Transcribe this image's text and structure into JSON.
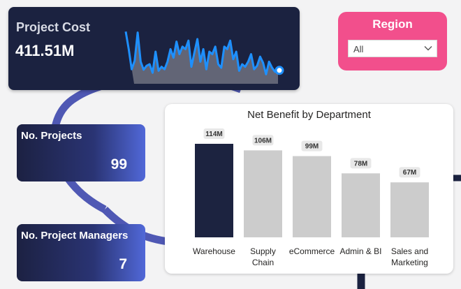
{
  "project_cost": {
    "label": "Project Cost",
    "value": "411.51M",
    "sparkline": [
      0.9,
      0.55,
      0.15,
      0.32,
      0.88,
      0.3,
      0.14,
      0.22,
      0.25,
      0.08,
      0.5,
      0.12,
      0.2,
      0.15,
      0.3,
      0.55,
      0.38,
      0.7,
      0.45,
      0.6,
      0.55,
      0.72,
      0.2,
      0.48,
      0.75,
      0.3,
      0.55,
      0.15,
      0.5,
      0.45,
      0.6,
      0.25,
      0.18,
      0.6,
      0.55,
      0.72,
      0.35,
      0.5,
      0.12,
      0.25,
      0.2,
      0.3,
      0.45,
      0.15,
      0.22,
      0.4,
      0.28,
      0.05,
      0.3,
      0.18,
      0.1,
      0.1
    ]
  },
  "region": {
    "label": "Region",
    "selected": "All"
  },
  "kpis": {
    "projects": {
      "label": "No. Projects",
      "value": "99"
    },
    "managers": {
      "label": "No. Project Managers",
      "value": "7"
    }
  },
  "colors": {
    "navy": "#1b2240",
    "pink": "#f24f8c",
    "ring": "#4f58b4",
    "bar_highlight": "#1c2340",
    "bar_default": "#cccccc",
    "sparkline": "#1e90ff"
  },
  "chart_data": {
    "type": "bar",
    "title": "Net Benefit by Department",
    "categories": [
      "Warehouse",
      "Supply Chain",
      "eCommerce",
      "Admin & BI",
      "Sales and Marketing"
    ],
    "category_lines": [
      [
        "Warehouse"
      ],
      [
        "Supply",
        "Chain"
      ],
      [
        "eCommerce"
      ],
      [
        "Admin & BI"
      ],
      [
        "Sales and",
        "Marketing"
      ]
    ],
    "values": [
      114,
      106,
      99,
      78,
      67
    ],
    "data_labels": [
      "114M",
      "106M",
      "99M",
      "78M",
      "67M"
    ],
    "highlight_index": 0,
    "ylim": [
      0,
      114
    ]
  }
}
